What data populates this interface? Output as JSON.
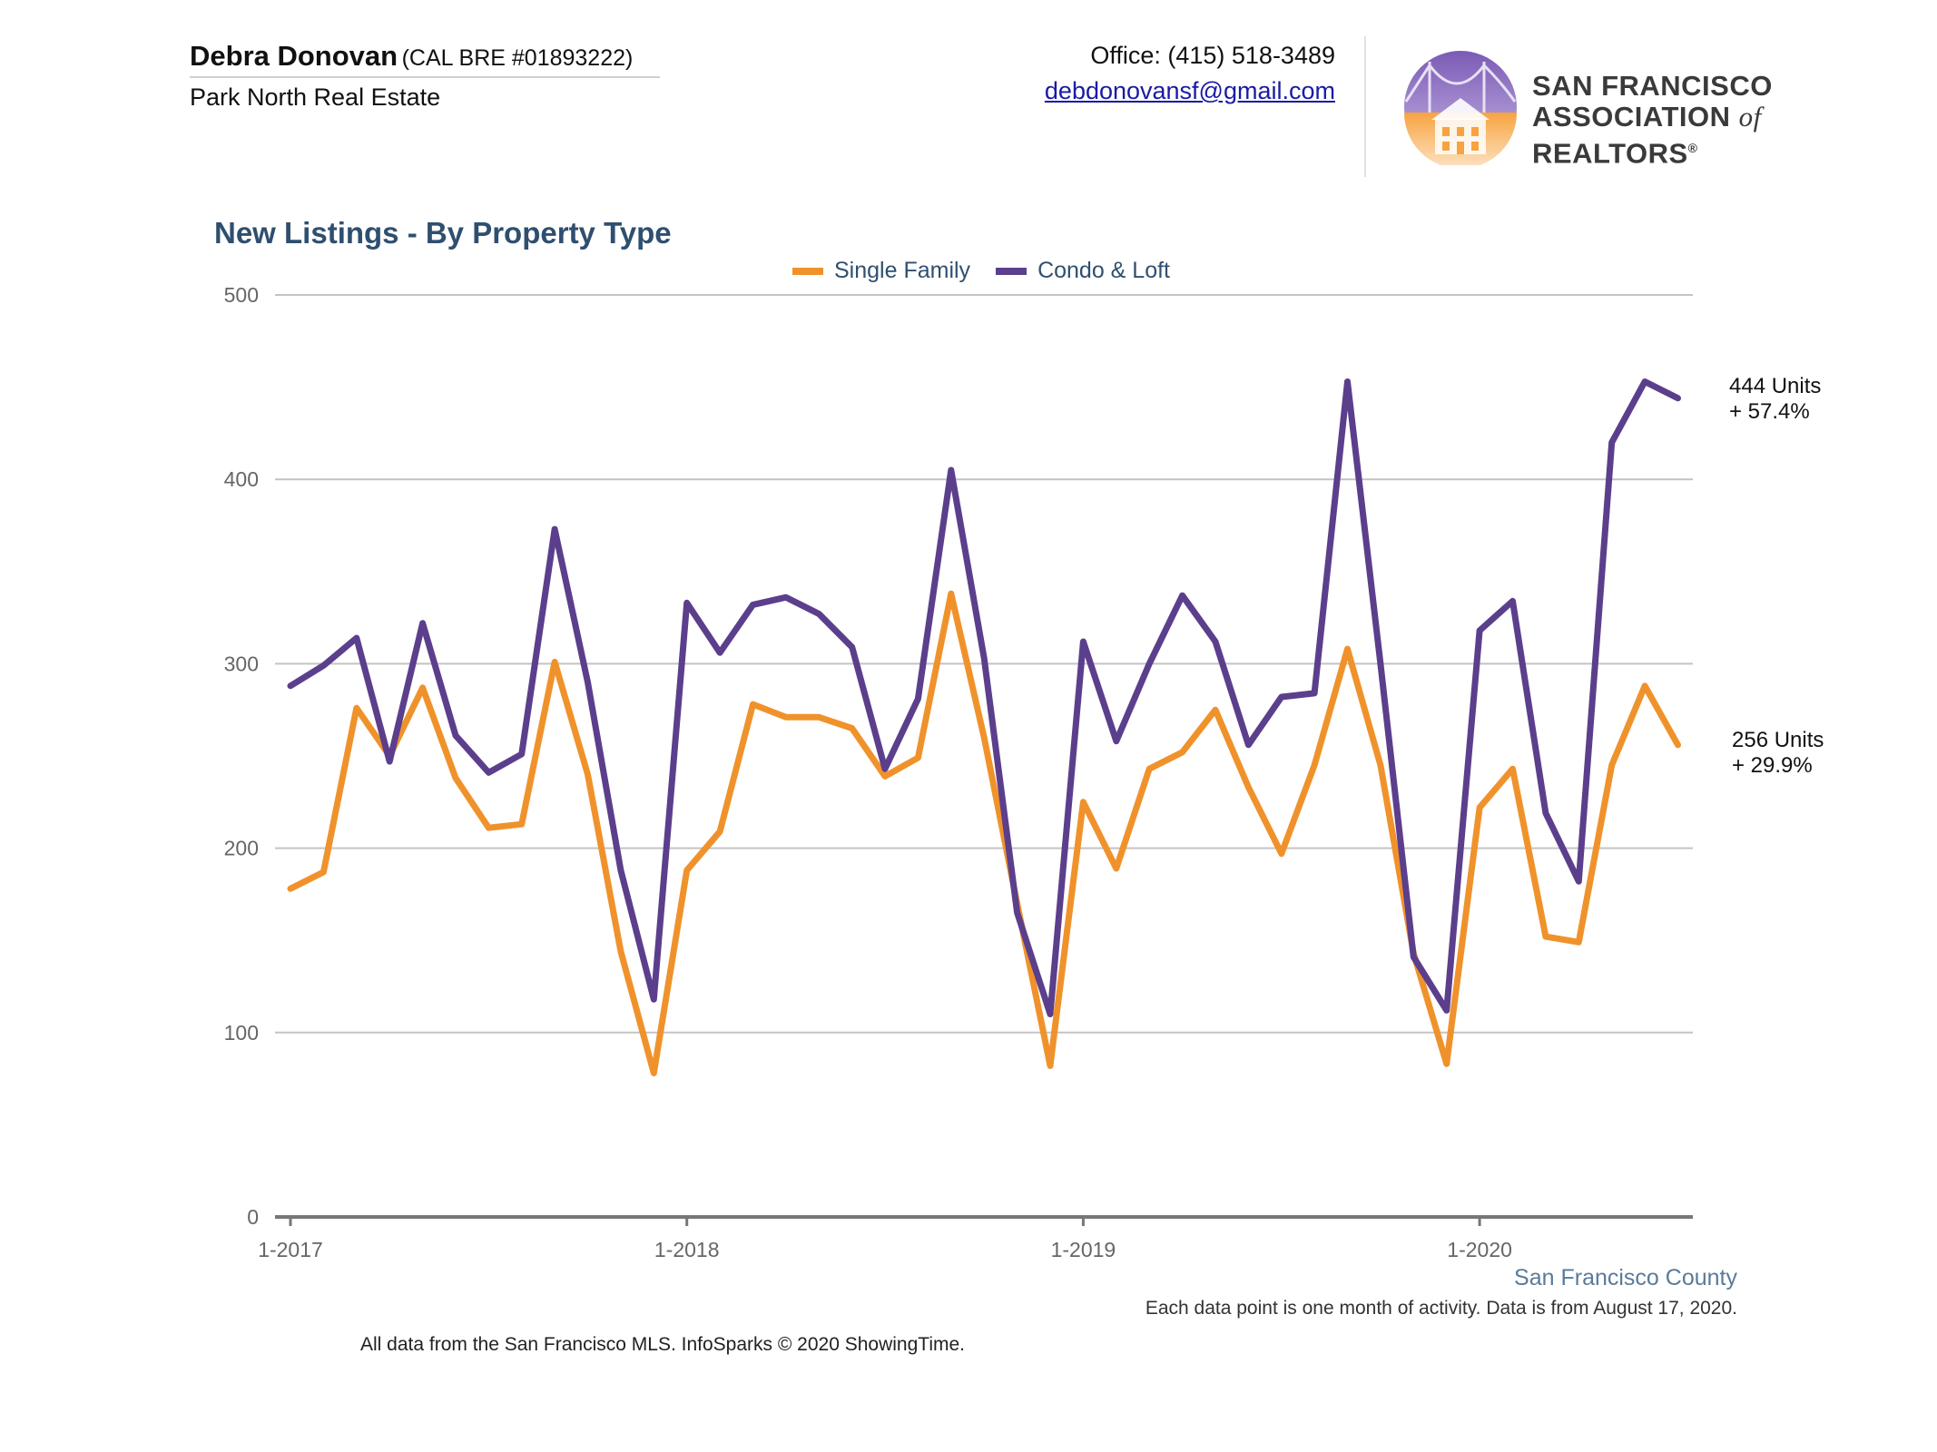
{
  "header": {
    "agent_name": "Debra Donovan",
    "agent_license": "(CAL BRE #01893222)",
    "company": "Park North Real Estate",
    "office": "Office: (415) 518-3489",
    "email": "debdonovansf@gmail.com",
    "logo_line1": "SAN FRANCISCO",
    "logo_line2_a": "ASSOCIATION",
    "logo_line2_of": "of",
    "logo_line2_b": "REALTORS",
    "logo_mark": "®"
  },
  "colors": {
    "single_family": "#f0922b",
    "condo_loft": "#5b3f8c",
    "grid": "#c4c4c4",
    "axis": "#777777"
  },
  "chart_data": {
    "type": "line",
    "title": "New Listings - By Property Type",
    "xlabel": "",
    "ylabel": "",
    "ylim": [
      0,
      500
    ],
    "yticks": [
      0,
      100,
      200,
      300,
      400,
      500
    ],
    "xtick_labels": [
      "1-2017",
      "1-2018",
      "1-2019",
      "1-2020"
    ],
    "x_start": "2017-01",
    "x_end": "2020-07",
    "legend_position": "top-center",
    "grid": true,
    "series": [
      {
        "name": "Single Family",
        "values": [
          178,
          187,
          276,
          250,
          287,
          238,
          211,
          213,
          301,
          240,
          144,
          78,
          188,
          209,
          278,
          271,
          271,
          265,
          239,
          249,
          338,
          260,
          170,
          82,
          225,
          189,
          243,
          252,
          275,
          233,
          197,
          245,
          308,
          245,
          143,
          83,
          222,
          243,
          152,
          149,
          245,
          288,
          256
        ],
        "end_label_1": "256 Units",
        "end_label_2": "+ 29.9%"
      },
      {
        "name": "Condo & Loft",
        "values": [
          288,
          299,
          314,
          247,
          322,
          261,
          241,
          251,
          373,
          290,
          188,
          118,
          333,
          306,
          332,
          336,
          327,
          309,
          243,
          281,
          405,
          303,
          165,
          110,
          312,
          258,
          300,
          337,
          312,
          256,
          282,
          284,
          453,
          300,
          141,
          112,
          318,
          334,
          219,
          182,
          420,
          453,
          444
        ],
        "end_label_1": "444 Units",
        "end_label_2": "+ 57.4%"
      }
    ]
  },
  "footer": {
    "region": "San Francisco County",
    "note": "Each data point is one month of activity. Data is from August 17, 2020.",
    "source": "All data from the San Francisco MLS. InfoSparks © 2020 ShowingTime."
  }
}
